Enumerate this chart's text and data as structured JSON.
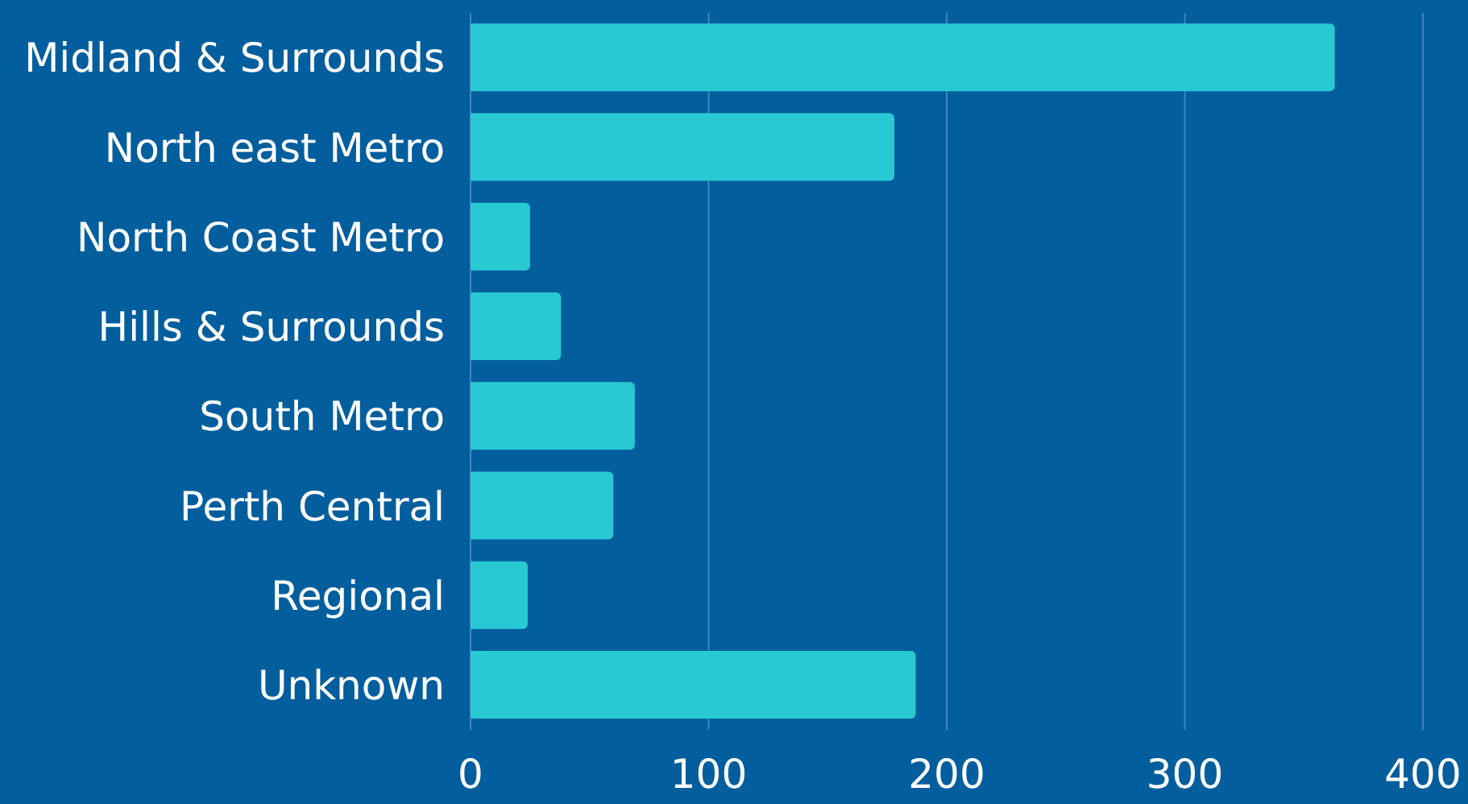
{
  "chart_data": {
    "type": "bar",
    "orientation": "horizontal",
    "categories": [
      "Midland & Surrounds",
      "North east Metro",
      "North Coast Metro",
      "Hills & Surrounds",
      "South Metro",
      "Perth Central",
      "Regional",
      "Unknown"
    ],
    "values": [
      363,
      178,
      25,
      38,
      69,
      60,
      24,
      187
    ],
    "color": "#29c9d4",
    "xlim": [
      0,
      400
    ],
    "xticks": [
      0,
      100,
      200,
      300,
      400
    ],
    "grid": "x"
  }
}
